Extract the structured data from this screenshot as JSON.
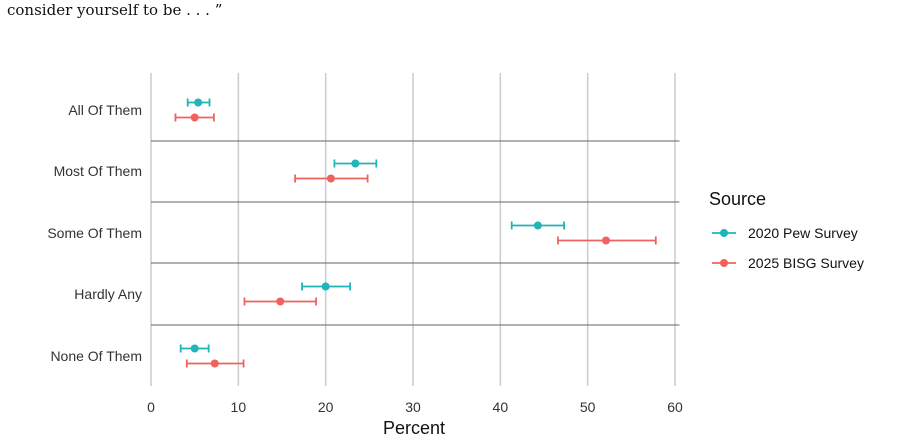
{
  "caption": "consider yourself to be . . . ”",
  "chart_data": {
    "type": "scatter",
    "orientation": "horizontal",
    "categories": [
      "All Of Them",
      "Most Of Them",
      "Some Of Them",
      "Hardly Any",
      "None Of Them"
    ],
    "xlabel": "Percent",
    "xlim": [
      0,
      60.5
    ],
    "xticks": [
      0,
      10,
      20,
      30,
      40,
      50,
      60
    ],
    "grid": "vertical",
    "error_bars": true,
    "legend_title": "Source",
    "legend_position": "right",
    "series": [
      {
        "name": "2020 Pew Survey",
        "color": "#1FB5B9",
        "values": [
          5.4,
          23.4,
          44.3,
          20.0,
          5.0
        ],
        "lower": [
          4.2,
          21.0,
          41.3,
          17.3,
          3.4
        ],
        "upper": [
          6.7,
          25.8,
          47.3,
          22.8,
          6.6
        ]
      },
      {
        "name": "2025 BISG Survey",
        "color": "#F0625E",
        "values": [
          5.0,
          20.6,
          52.1,
          14.8,
          7.3
        ],
        "lower": [
          2.8,
          16.5,
          46.6,
          10.7,
          4.1
        ],
        "upper": [
          7.2,
          24.8,
          57.8,
          18.9,
          10.6
        ]
      }
    ]
  }
}
